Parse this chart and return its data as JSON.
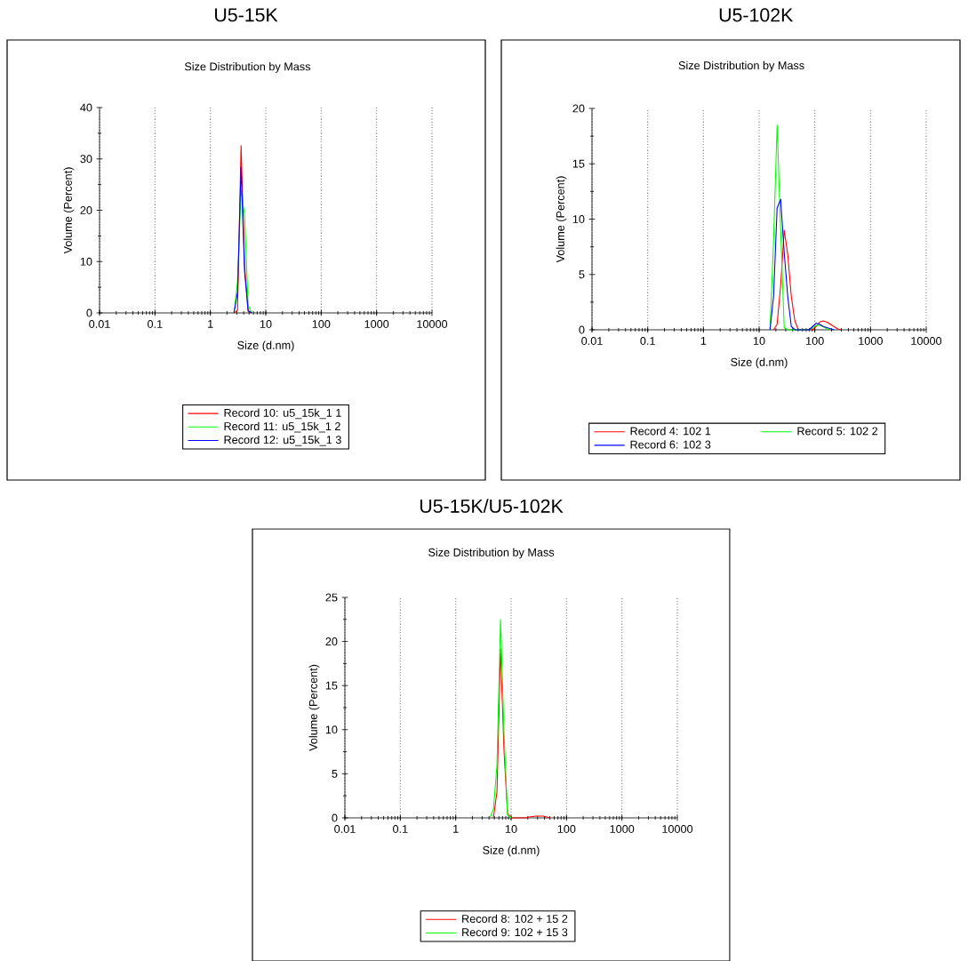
{
  "chart_data": [
    {
      "type": "line",
      "title": "U5-15K",
      "subtitle": "Size Distribution by Mass",
      "xlabel": "Size (d.nm)",
      "ylabel": "Volume (Percent)",
      "log": "x",
      "grid": "x",
      "legend": "bottom",
      "xlim": [
        0.01,
        10000
      ],
      "xticks": [
        0.01,
        0.1,
        1,
        10,
        100,
        1000,
        10000
      ],
      "ylim": [
        0,
        40
      ],
      "yticks": [
        0,
        10,
        20,
        30,
        40
      ],
      "series": [
        {
          "name": "Record 10: u5_15k_1 1",
          "color": "#ff0000",
          "x": [
            2.669,
            3.091,
            3.58,
            4.145,
            4.801,
            5.56
          ],
          "values": [
            0,
            0.5,
            32.6,
            9.2,
            0.3,
            0
          ]
        },
        {
          "name": "Record 11: u5_15k_1 2",
          "color": "#00ff00",
          "x": [
            2.669,
            3.091,
            3.58,
            4.145,
            4.801,
            5.56
          ],
          "values": [
            0,
            6,
            24,
            19,
            1.5,
            0
          ]
        },
        {
          "name": "Record 12: u5_15k_1 3",
          "color": "#0000ff",
          "x": [
            2.669,
            3.091,
            3.58,
            4.145,
            4.801,
            5.56
          ],
          "values": [
            0,
            4,
            28.4,
            8,
            0.5,
            0
          ]
        }
      ]
    },
    {
      "type": "line",
      "title": "U5-102K",
      "subtitle": "Size Distribution by Mass",
      "xlabel": "Size (d.nm)",
      "ylabel": "Volume (Percent)",
      "log": "x",
      "grid": "x",
      "legend": "bottom",
      "xlim": [
        0.01,
        10000
      ],
      "xticks": [
        0.01,
        0.1,
        1,
        10,
        100,
        1000,
        10000
      ],
      "ylim": [
        0,
        20
      ],
      "yticks": [
        0,
        5,
        10,
        15,
        20
      ],
      "series": [
        {
          "name": "Record 4: 102 1",
          "color": "#ff0000",
          "x": [
            18.17,
            21.04,
            24.36,
            28.21,
            32.67,
            37.84,
            43.82,
            50.75,
            91.28,
            105.7,
            122.4,
            141.8,
            164.2,
            190.1,
            220.2,
            255.0,
            295.3
          ],
          "values": [
            0,
            0.5,
            4,
            9,
            6.8,
            3,
            0.8,
            0,
            0,
            0.3,
            0.7,
            0.8,
            0.7,
            0.5,
            0.3,
            0.1,
            0
          ]
        },
        {
          "name": "Record 5: 102 2",
          "color": "#00ff00",
          "x": [
            15.69,
            18.17,
            21.04,
            24.36,
            28.21,
            32.67,
            78.82,
            91.28,
            105.7,
            122.4,
            141.8,
            164.2,
            190.1
          ],
          "values": [
            0,
            8,
            18.5,
            9,
            0.2,
            0,
            0,
            0.2,
            0.4,
            0.4,
            0.3,
            0.1,
            0
          ]
        },
        {
          "name": "Record 6: 102 3",
          "color": "#0000ff",
          "x": [
            15.69,
            18.17,
            21.04,
            24.36,
            28.21,
            32.67,
            37.84,
            43.82,
            78.82,
            91.28,
            105.7,
            122.4,
            141.8,
            164.2,
            190.1,
            220.2
          ],
          "values": [
            0,
            3,
            11,
            11.8,
            7,
            3,
            0.3,
            0,
            0,
            0.3,
            0.6,
            0.5,
            0.3,
            0.2,
            0.1,
            0
          ]
        }
      ]
    },
    {
      "type": "line",
      "title": "U5-15K/U5-102K",
      "subtitle": "Size Distribution by Mass",
      "xlabel": "Size (d.nm)",
      "ylabel": "Volume (Percent)",
      "log": "x",
      "grid": "x",
      "legend": "bottom",
      "xlim": [
        0.01,
        10000
      ],
      "xticks": [
        0.01,
        0.1,
        1,
        10,
        100,
        1000,
        10000
      ],
      "ylim": [
        0,
        25
      ],
      "yticks": [
        0,
        5,
        10,
        15,
        20,
        25
      ],
      "series": [
        {
          "name": "Record 8: 102 + 15 2",
          "color": "#ff0000",
          "x": [
            4.801,
            5.56,
            6.439,
            7.456,
            8.63,
            10.1,
            18.17,
            21.04,
            28.21,
            37.84,
            50.75
          ],
          "values": [
            0,
            3,
            19.2,
            7.5,
            0.5,
            0,
            0,
            0.1,
            0.2,
            0.2,
            0
          ]
        },
        {
          "name": "Record 9: 102 + 15 3",
          "color": "#00ff00",
          "x": [
            4.145,
            4.801,
            5.56,
            6.439,
            7.456,
            8.63,
            10.1
          ],
          "values": [
            0,
            1,
            6,
            22.5,
            9.5,
            0.3,
            0
          ]
        }
      ]
    }
  ]
}
